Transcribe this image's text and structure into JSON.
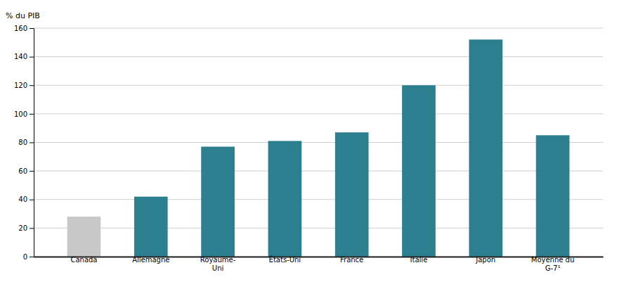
{
  "chart_data": {
    "type": "bar",
    "ylabel": "% du PIB",
    "categories": [
      "Canada",
      "Allemagne",
      "Royaume-\nUni",
      "États-Uni",
      "France",
      "Italie",
      "Japon",
      "Moyenne du\nG-7¹"
    ],
    "values": [
      28,
      42,
      77,
      81,
      87,
      120,
      152,
      85
    ],
    "colors": [
      "#c8c8c8",
      "#2b7f8e",
      "#2b7f8e",
      "#2b7f8e",
      "#2b7f8e",
      "#2b7f8e",
      "#2b7f8e",
      "#2b7f8e"
    ],
    "ylim": [
      0,
      160
    ],
    "yticks": [
      0,
      20,
      40,
      60,
      80,
      100,
      120,
      140,
      160
    ],
    "grid": true
  }
}
